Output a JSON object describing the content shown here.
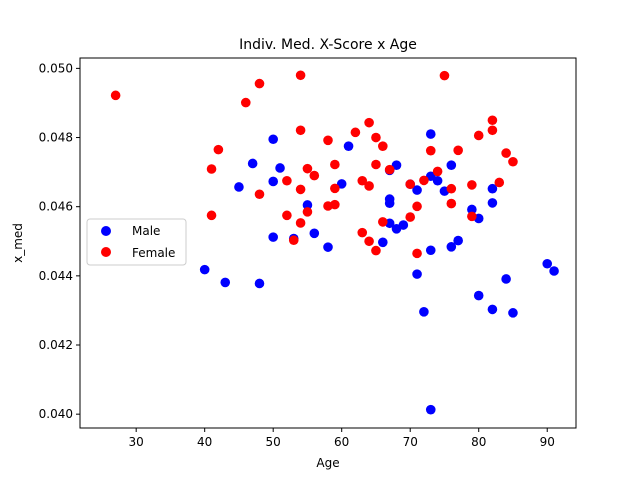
{
  "chart_data": {
    "type": "scatter",
    "title": "Indiv. Med. X-Score x Age",
    "xlabel": "Age",
    "ylabel": "x_med",
    "xlim": [
      21.8,
      94.2
    ],
    "ylim": [
      0.0396,
      0.0503
    ],
    "xticks": [
      30,
      40,
      50,
      60,
      70,
      80,
      90
    ],
    "yticks": [
      0.04,
      0.042,
      0.044,
      0.046,
      0.048,
      0.05
    ],
    "xtick_labels": [
      "30",
      "40",
      "50",
      "60",
      "70",
      "80",
      "90"
    ],
    "ytick_labels": [
      "0.040",
      "0.042",
      "0.044",
      "0.046",
      "0.048",
      "0.050"
    ],
    "grid": false,
    "legend_position": "center-left",
    "series": [
      {
        "name": "Male",
        "color": "#0000ff",
        "points": [
          [
            40,
            0.04418
          ],
          [
            43,
            0.04381
          ],
          [
            45,
            0.04657
          ],
          [
            47,
            0.04725
          ],
          [
            48,
            0.04378
          ],
          [
            50,
            0.04795
          ],
          [
            50,
            0.04673
          ],
          [
            50,
            0.04512
          ],
          [
            51,
            0.04712
          ],
          [
            53,
            0.04508
          ],
          [
            55,
            0.04605
          ],
          [
            56,
            0.04523
          ],
          [
            58,
            0.04483
          ],
          [
            60,
            0.04666
          ],
          [
            61,
            0.04775
          ],
          [
            66,
            0.04497
          ],
          [
            67,
            0.04622
          ],
          [
            67,
            0.0461
          ],
          [
            67,
            0.04705
          ],
          [
            67,
            0.04552
          ],
          [
            68,
            0.0472
          ],
          [
            68,
            0.04536
          ],
          [
            69,
            0.04547
          ],
          [
            70,
            0.04665
          ],
          [
            71,
            0.04648
          ],
          [
            71,
            0.04405
          ],
          [
            72,
            0.04296
          ],
          [
            73,
            0.0481
          ],
          [
            73,
            0.04688
          ],
          [
            73,
            0.04474
          ],
          [
            73,
            0.04013
          ],
          [
            74,
            0.04675
          ],
          [
            75,
            0.04645
          ],
          [
            76,
            0.0472
          ],
          [
            76,
            0.04484
          ],
          [
            77,
            0.04502
          ],
          [
            79,
            0.04592
          ],
          [
            80,
            0.04566
          ],
          [
            80,
            0.04343
          ],
          [
            82,
            0.04652
          ],
          [
            82,
            0.04611
          ],
          [
            82,
            0.04303
          ],
          [
            84,
            0.04391
          ],
          [
            85,
            0.04293
          ],
          [
            90,
            0.04435
          ],
          [
            91,
            0.04414
          ]
        ]
      },
      {
        "name": "Female",
        "color": "#ff0000",
        "points": [
          [
            27,
            0.04922
          ],
          [
            41,
            0.04709
          ],
          [
            41,
            0.04575
          ],
          [
            42,
            0.04765
          ],
          [
            46,
            0.04901
          ],
          [
            48,
            0.04956
          ],
          [
            48,
            0.04636
          ],
          [
            52,
            0.04675
          ],
          [
            52,
            0.04575
          ],
          [
            53,
            0.04503
          ],
          [
            54,
            0.0498
          ],
          [
            54,
            0.04821
          ],
          [
            54,
            0.0465
          ],
          [
            54,
            0.04553
          ],
          [
            55,
            0.0471
          ],
          [
            55,
            0.04585
          ],
          [
            56,
            0.0469
          ],
          [
            58,
            0.04792
          ],
          [
            58,
            0.04602
          ],
          [
            59,
            0.04722
          ],
          [
            59,
            0.04653
          ],
          [
            59,
            0.04606
          ],
          [
            62,
            0.04815
          ],
          [
            63,
            0.04675
          ],
          [
            63,
            0.04525
          ],
          [
            64,
            0.04843
          ],
          [
            64,
            0.0466
          ],
          [
            64,
            0.045
          ],
          [
            65,
            0.048
          ],
          [
            65,
            0.04722
          ],
          [
            65,
            0.04473
          ],
          [
            66,
            0.04775
          ],
          [
            66,
            0.04556
          ],
          [
            67,
            0.04707
          ],
          [
            70,
            0.04665
          ],
          [
            70,
            0.0457
          ],
          [
            71,
            0.04601
          ],
          [
            71,
            0.04465
          ],
          [
            72,
            0.04676
          ],
          [
            73,
            0.04762
          ],
          [
            74,
            0.04702
          ],
          [
            75,
            0.04979
          ],
          [
            76,
            0.04652
          ],
          [
            76,
            0.04609
          ],
          [
            77,
            0.04763
          ],
          [
            79,
            0.04663
          ],
          [
            79,
            0.04572
          ],
          [
            80,
            0.04806
          ],
          [
            82,
            0.0485
          ],
          [
            82,
            0.04821
          ],
          [
            83,
            0.0467
          ],
          [
            84,
            0.04755
          ],
          [
            85,
            0.0473
          ]
        ]
      }
    ]
  }
}
